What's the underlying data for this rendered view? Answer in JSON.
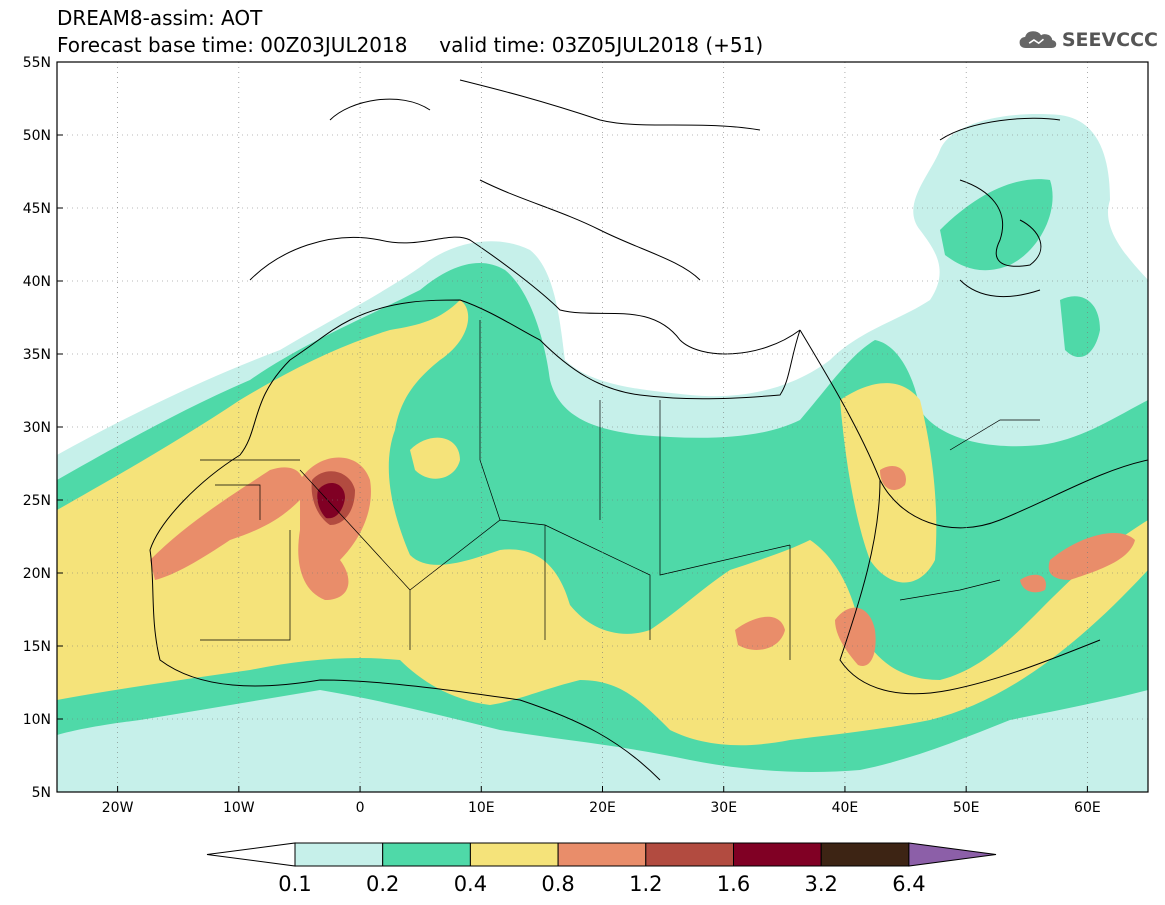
{
  "title": {
    "line1": "DREAM8-assim: AOT",
    "line2": "Forecast base time: 00Z03JUL2018     valid time: 03Z05JUL2018 (+51)"
  },
  "logo": {
    "text": "SEEVCCC",
    "icon": "cloud-icon"
  },
  "map": {
    "lon_range": [
      -25,
      65
    ],
    "lat_range": [
      5,
      55
    ],
    "x_ticks": [
      {
        "value": -20,
        "label": "20W"
      },
      {
        "value": -10,
        "label": "10W"
      },
      {
        "value": 0,
        "label": "0"
      },
      {
        "value": 10,
        "label": "10E"
      },
      {
        "value": 20,
        "label": "20E"
      },
      {
        "value": 30,
        "label": "30E"
      },
      {
        "value": 40,
        "label": "40E"
      },
      {
        "value": 50,
        "label": "50E"
      },
      {
        "value": 60,
        "label": "60E"
      }
    ],
    "y_ticks": [
      {
        "value": 55,
        "label": "55N"
      },
      {
        "value": 50,
        "label": "50N"
      },
      {
        "value": 45,
        "label": "45N"
      },
      {
        "value": 40,
        "label": "40N"
      },
      {
        "value": 35,
        "label": "35N"
      },
      {
        "value": 30,
        "label": "30N"
      },
      {
        "value": 25,
        "label": "25N"
      },
      {
        "value": 20,
        "label": "20N"
      },
      {
        "value": 15,
        "label": "15N"
      },
      {
        "value": 10,
        "label": "10N"
      },
      {
        "value": 5,
        "label": "5N"
      }
    ],
    "grid": "dotted"
  },
  "colorbar": {
    "labels": [
      "0.1",
      "0.2",
      "0.4",
      "0.8",
      "1.2",
      "1.6",
      "3.2",
      "6.4"
    ],
    "colors": {
      "under": "#ffffff",
      "c1": "#c6f0ea",
      "c2": "#4fd9a8",
      "c3": "#f5e37a",
      "c4": "#e98d6a",
      "c5": "#b24b40",
      "c6": "#800024",
      "c7": "#3d2414",
      "over": "#8c5fa8"
    }
  }
}
